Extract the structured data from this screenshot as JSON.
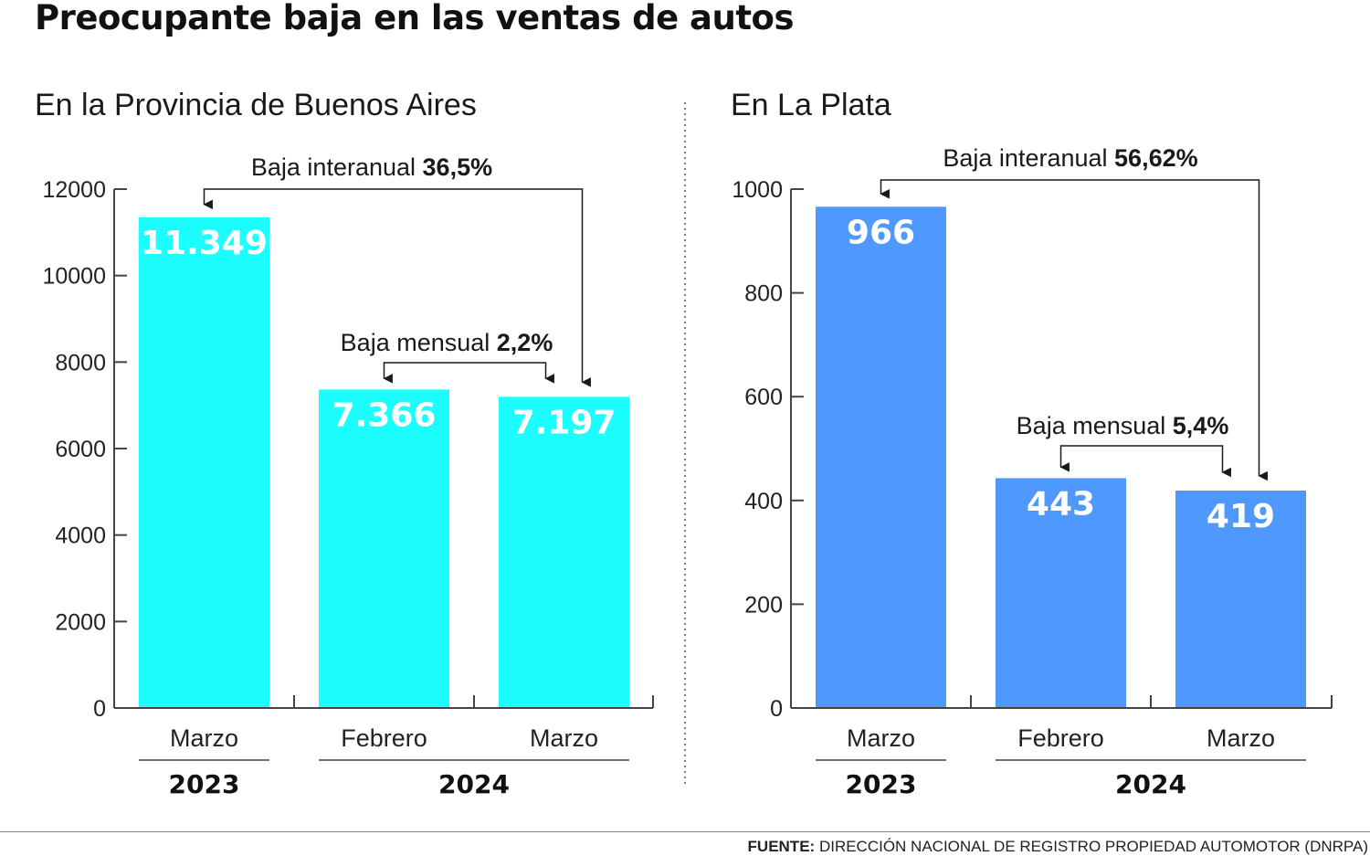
{
  "title": "Preocupante baja en las ventas de autos",
  "source": {
    "label": "FUENTE:",
    "text": "DIRECCIÓN NACIONAL DE REGISTRO PROPIEDAD AUTOMOTOR (DNRPA)"
  },
  "chart_data": [
    {
      "type": "bar",
      "title": "En la Provincia de Buenos Aires",
      "categories": [
        "Marzo",
        "Febrero",
        "Marzo"
      ],
      "values": [
        11349,
        7366,
        7197
      ],
      "value_labels": [
        "11.349",
        "7.366",
        "7.197"
      ],
      "year_groups": [
        {
          "label": "2023",
          "categories": [
            0
          ]
        },
        {
          "label": "2024",
          "categories": [
            1,
            2
          ]
        }
      ],
      "ylim": [
        0,
        12000
      ],
      "yticks": [
        0,
        2000,
        4000,
        6000,
        8000,
        10000,
        12000
      ],
      "ytick_labels": [
        "0",
        "2000",
        "4000",
        "6000",
        "8000",
        "10000",
        "12000"
      ],
      "bar_color": "#1cfefe",
      "annotations": [
        {
          "text": "Baja interanual ",
          "value": "36,5%",
          "from": 0,
          "to": 2
        },
        {
          "text": "Baja mensual ",
          "value": "2,2%",
          "from": 1,
          "to": 2
        }
      ],
      "grid": false,
      "legend": "none"
    },
    {
      "type": "bar",
      "title": "En La Plata",
      "categories": [
        "Marzo",
        "Febrero",
        "Marzo"
      ],
      "values": [
        966,
        443,
        419
      ],
      "value_labels": [
        "966",
        "443",
        "419"
      ],
      "year_groups": [
        {
          "label": "2023",
          "categories": [
            0
          ]
        },
        {
          "label": "2024",
          "categories": [
            1,
            2
          ]
        }
      ],
      "ylim": [
        0,
        1000
      ],
      "yticks": [
        0,
        200,
        400,
        600,
        800,
        1000
      ],
      "ytick_labels": [
        "0",
        "200",
        "400",
        "600",
        "800",
        "1000"
      ],
      "bar_color": "#4f99fe",
      "annotations": [
        {
          "text": "Baja interanual ",
          "value": "56,62%",
          "from": 0,
          "to": 2
        },
        {
          "text": "Baja mensual ",
          "value": "5,4%",
          "from": 1,
          "to": 2
        }
      ],
      "grid": false,
      "legend": "none"
    }
  ]
}
